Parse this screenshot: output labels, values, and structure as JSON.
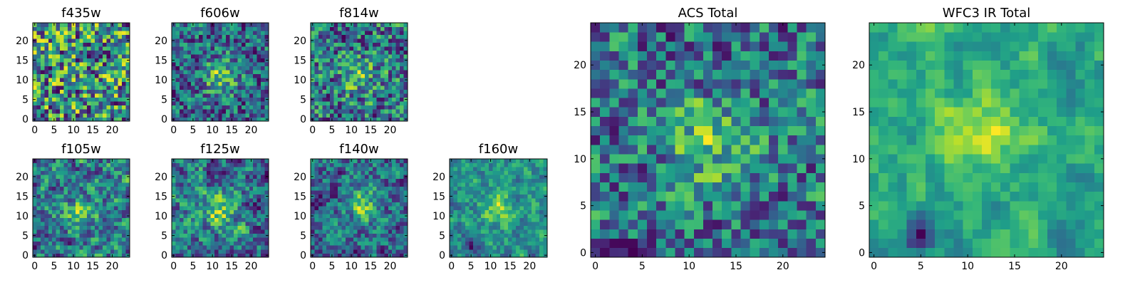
{
  "chart_data": [
    {
      "type": "heatmap",
      "title": "f435w",
      "xlim": [
        0,
        24
      ],
      "ylim": [
        0,
        24
      ],
      "xticks": [
        0,
        5,
        10,
        15,
        20
      ],
      "yticks": [
        0,
        5,
        10,
        15,
        20
      ],
      "grid": false,
      "colormap": "viridis",
      "seed": 11,
      "smooth": 0.1
    },
    {
      "type": "heatmap",
      "title": "f606w",
      "xlim": [
        0,
        24
      ],
      "ylim": [
        0,
        24
      ],
      "xticks": [
        0,
        5,
        10,
        15,
        20
      ],
      "yticks": [
        0,
        5,
        10,
        15,
        20
      ],
      "grid": false,
      "colormap": "viridis",
      "seed": 23,
      "smooth": 0.2,
      "peak": [
        12,
        11,
        0.5
      ]
    },
    {
      "type": "heatmap",
      "title": "f814w",
      "xlim": [
        0,
        24
      ],
      "ylim": [
        0,
        24
      ],
      "xticks": [
        0,
        5,
        10,
        15,
        20
      ],
      "yticks": [
        0,
        5,
        10,
        15,
        20
      ],
      "grid": false,
      "colormap": "viridis",
      "seed": 37,
      "smooth": 0.2,
      "peak": [
        12,
        11,
        0.3
      ]
    },
    {
      "type": "heatmap",
      "title": "f105w",
      "xlim": [
        0,
        24
      ],
      "ylim": [
        0,
        24
      ],
      "xticks": [
        0,
        5,
        10,
        15,
        20
      ],
      "yticks": [
        0,
        5,
        10,
        15,
        20
      ],
      "grid": false,
      "colormap": "viridis",
      "seed": 41,
      "smooth": 0.5,
      "peak": [
        12,
        11,
        0.3
      ]
    },
    {
      "type": "heatmap",
      "title": "f125w",
      "xlim": [
        0,
        24
      ],
      "ylim": [
        0,
        24
      ],
      "xticks": [
        0,
        5,
        10,
        15,
        20
      ],
      "yticks": [
        0,
        5,
        10,
        15,
        20
      ],
      "grid": false,
      "colormap": "viridis",
      "seed": 53,
      "smooth": 0.5,
      "peak": [
        12,
        11,
        0.35
      ]
    },
    {
      "type": "heatmap",
      "title": "f140w",
      "xlim": [
        0,
        24
      ],
      "ylim": [
        0,
        24
      ],
      "xticks": [
        0,
        5,
        10,
        15,
        20
      ],
      "yticks": [
        0,
        5,
        10,
        15,
        20
      ],
      "grid": false,
      "colormap": "viridis",
      "seed": 67,
      "smooth": 0.5,
      "peak": [
        13,
        13,
        0.4
      ]
    },
    {
      "type": "heatmap",
      "title": "f160w",
      "xlim": [
        0,
        24
      ],
      "ylim": [
        0,
        24
      ],
      "xticks": [
        0,
        5,
        10,
        15,
        20
      ],
      "yticks": [
        0,
        5,
        10,
        15,
        20
      ],
      "grid": false,
      "colormap": "viridis",
      "seed": 79,
      "smooth": 0.5,
      "peak": [
        12,
        12,
        0.45
      ],
      "dark": [
        5,
        2,
        0.5
      ]
    },
    {
      "type": "heatmap",
      "title": "ACS Total",
      "xlim": [
        0,
        24
      ],
      "ylim": [
        0,
        24
      ],
      "xticks": [
        0,
        5,
        10,
        15,
        20
      ],
      "yticks": [
        0,
        5,
        10,
        15,
        20
      ],
      "grid": false,
      "colormap": "viridis",
      "seed": 97,
      "smooth": 0.25,
      "peak": [
        12,
        12,
        0.4
      ]
    },
    {
      "type": "heatmap",
      "title": "WFC3 IR Total",
      "xlim": [
        0,
        24
      ],
      "ylim": [
        0,
        24
      ],
      "xticks": [
        0,
        5,
        10,
        15,
        20
      ],
      "yticks": [
        0,
        5,
        10,
        15,
        20
      ],
      "grid": false,
      "colormap": "viridis",
      "seed": 131,
      "smooth": 0.7,
      "peak": [
        12,
        13,
        0.5
      ],
      "dark": [
        5,
        2,
        0.9
      ]
    }
  ]
}
